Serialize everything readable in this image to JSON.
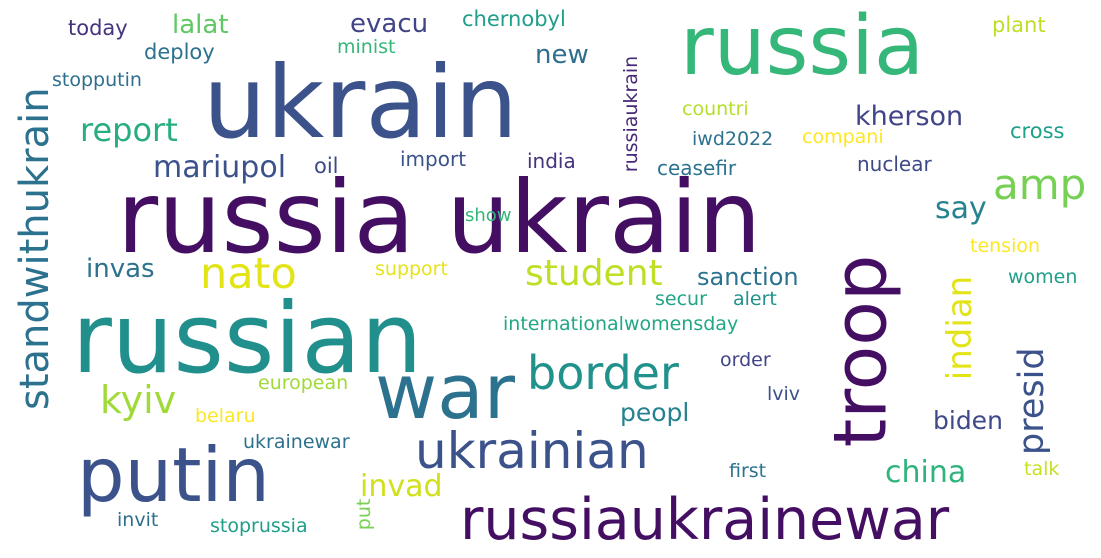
{
  "words": [
    {
      "key": "russia_ukrain",
      "text": "russia ukrain",
      "color": "#440f63"
    },
    {
      "key": "ukrain",
      "text": "ukrain",
      "color": "#3b528b"
    },
    {
      "key": "russia",
      "text": "russia",
      "color": "#35b779"
    },
    {
      "key": "russian",
      "text": "russian",
      "color": "#21908d"
    },
    {
      "key": "war",
      "text": "war",
      "color": "#2c728e"
    },
    {
      "key": "putin",
      "text": "putin",
      "color": "#3b528b"
    },
    {
      "key": "russiaukrainewar",
      "text": "russiaukrainewar",
      "color": "#440f63"
    },
    {
      "key": "troop",
      "text": "troop",
      "color": "#440f63"
    },
    {
      "key": "ukrainian",
      "text": "ukrainian",
      "color": "#3b528b"
    },
    {
      "key": "border",
      "text": "border",
      "color": "#21918c"
    },
    {
      "key": "standwithukrain",
      "text": "standwithukrain",
      "color": "#2c728e"
    },
    {
      "key": "nato",
      "text": "nato",
      "color": "#e2e418"
    },
    {
      "key": "student",
      "text": "student",
      "color": "#bddf26"
    },
    {
      "key": "amp",
      "text": "amp",
      "color": "#75d054"
    },
    {
      "key": "presid",
      "text": "presid",
      "color": "#3b528b"
    },
    {
      "key": "indian",
      "text": "indian",
      "color": "#e3e418"
    },
    {
      "key": "kyiv",
      "text": "kyiv",
      "color": "#a0da39"
    },
    {
      "key": "report",
      "text": "report",
      "color": "#27ad81"
    },
    {
      "key": "mariupol",
      "text": "mariupol",
      "color": "#3b528b"
    },
    {
      "key": "china",
      "text": "china",
      "color": "#2fb47c"
    },
    {
      "key": "invad",
      "text": "invad",
      "color": "#d0e11c"
    },
    {
      "key": "kherson",
      "text": "kherson",
      "color": "#414487"
    },
    {
      "key": "say",
      "text": "say",
      "color": "#26828e"
    },
    {
      "key": "invas",
      "text": "invas",
      "color": "#2c728e"
    },
    {
      "key": "sanction",
      "text": "sanction",
      "color": "#2c728e"
    },
    {
      "key": "peopl",
      "text": "peopl",
      "color": "#26828e"
    },
    {
      "key": "biden",
      "text": "biden",
      "color": "#3e4989"
    },
    {
      "key": "evacu",
      "text": "evacu",
      "color": "#414487"
    },
    {
      "key": "lalat",
      "text": "lalat",
      "color": "#5ec962"
    },
    {
      "key": "new",
      "text": "new",
      "color": "#2e6f8e"
    },
    {
      "key": "chernobyl",
      "text": "chernobyl",
      "color": "#1f9e89"
    },
    {
      "key": "today",
      "text": "today",
      "color": "#46337e"
    },
    {
      "key": "deploy",
      "text": "deploy",
      "color": "#2c728e"
    },
    {
      "key": "minist",
      "text": "minist",
      "color": "#35b779"
    },
    {
      "key": "stopputin",
      "text": "stopputin",
      "color": "#2e6f8e"
    },
    {
      "key": "russiaukrain",
      "text": "russiaukrain",
      "color": "#482878"
    },
    {
      "key": "countri",
      "text": "countri",
      "color": "#b5de2b"
    },
    {
      "key": "iwd2022",
      "text": "iwd2022",
      "color": "#2c728e"
    },
    {
      "key": "compani",
      "text": "compani",
      "color": "#fde725"
    },
    {
      "key": "cross",
      "text": "cross",
      "color": "#1fa088"
    },
    {
      "key": "plant",
      "text": "plant",
      "color": "#bddf26"
    },
    {
      "key": "oil",
      "text": "oil",
      "color": "#3e4989"
    },
    {
      "key": "import",
      "text": "import",
      "color": "#3b528b"
    },
    {
      "key": "india",
      "text": "india",
      "color": "#46337e"
    },
    {
      "key": "ceasefir",
      "text": "ceasefir",
      "color": "#2c728e"
    },
    {
      "key": "nuclear",
      "text": "nuclear",
      "color": "#3e4989"
    },
    {
      "key": "show",
      "text": "show",
      "color": "#35b779"
    },
    {
      "key": "tension",
      "text": "tension",
      "color": "#fde725"
    },
    {
      "key": "support",
      "text": "support",
      "color": "#e5e419"
    },
    {
      "key": "women",
      "text": "women",
      "color": "#1f9e89"
    },
    {
      "key": "secur",
      "text": "secur",
      "color": "#20a386"
    },
    {
      "key": "alert",
      "text": "alert",
      "color": "#21918c"
    },
    {
      "key": "internationalwomensday",
      "text": "internationalwomensday",
      "color": "#22a785"
    },
    {
      "key": "order",
      "text": "order",
      "color": "#414487"
    },
    {
      "key": "european",
      "text": "european",
      "color": "#a0da39"
    },
    {
      "key": "lviv",
      "text": "lviv",
      "color": "#3b528b"
    },
    {
      "key": "belaru",
      "text": "belaru",
      "color": "#fde725"
    },
    {
      "key": "ukrainewar",
      "text": "ukrainewar",
      "color": "#2c728e"
    },
    {
      "key": "first",
      "text": "first",
      "color": "#2c728e"
    },
    {
      "key": "talk",
      "text": "talk",
      "color": "#c8e020"
    },
    {
      "key": "put",
      "text": "put",
      "color": "#7ad151"
    },
    {
      "key": "invit",
      "text": "invit",
      "color": "#2e6f8e"
    },
    {
      "key": "stoprussia",
      "text": "stoprussia",
      "color": "#1f9e89"
    }
  ]
}
